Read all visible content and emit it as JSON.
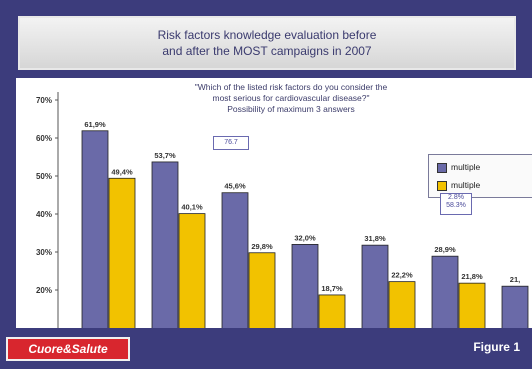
{
  "title": {
    "line1": "Risk factors knowledge evaluation before",
    "line2": "and after the MOST campaigns in 2007"
  },
  "question": {
    "line1": "\"Which of the listed risk factors do you consider the",
    "line2": "most serious for cardiovascular disease?\"",
    "line3": "Possibility of maximum 3 answers"
  },
  "callouts": {
    "first": "76.7",
    "second_line1": "2.8%",
    "second_line2": "58.3%"
  },
  "footer": {
    "logo_text": "Cuore&Salute",
    "figure_label": "Figure 1"
  },
  "colors": {
    "series1": "#6a6aa8",
    "series2": "#f2c200",
    "background": "#3c3c7c"
  },
  "chart_data": {
    "type": "bar",
    "categories": [
      "",
      "",
      "",
      "",
      "",
      "",
      ""
    ],
    "series": [
      {
        "name": "multiple",
        "color": "#6a6aa8",
        "values": [
          61.9,
          53.7,
          45.6,
          32.0,
          31.8,
          28.9,
          21.0
        ],
        "labels": [
          "61,9%",
          "53,7%",
          "45,6%",
          "32,0%",
          "31,8%",
          "28,9%",
          "21,"
        ]
      },
      {
        "name": "multiple",
        "color": "#f2c200",
        "values": [
          49.4,
          40.1,
          29.8,
          18.7,
          22.2,
          21.8,
          null
        ],
        "labels": [
          "49,4%",
          "40,1%",
          "29,8%",
          "18,7%",
          "22,2%",
          "21,8%",
          ""
        ]
      }
    ],
    "yticks": [
      "70%",
      "60%",
      "50%",
      "40%",
      "30%",
      "20%"
    ],
    "ylim": [
      12,
      72
    ],
    "grid": false,
    "legend_position": "right"
  }
}
